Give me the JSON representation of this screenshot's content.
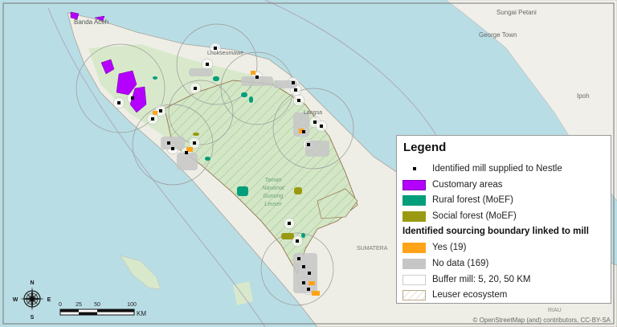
{
  "map": {
    "place_labels": {
      "banda_aceh": "Banda Aceh",
      "lhokseumawe": "Lhokseumawe",
      "langsa": "Langsa",
      "sungai_petani": "Sungai Petani",
      "george_town": "George Town",
      "ipoh": "Ipoh",
      "park_line1": "Taman",
      "park_line2": "Nasional",
      "park_line3": "Gunung",
      "park_line4": "Leuser",
      "sumatera": "SUMATERA",
      "riau": "RIAU"
    },
    "attribution": "© OpenStreetMap (and) contributors, CC-BY-SA",
    "colors": {
      "sea": "#b9dde4",
      "land": "#f1efe9",
      "leuser": "#d5e8c8",
      "customary": "#b400ff",
      "rural_forest": "#009e7a",
      "social_forest": "#9a9a12",
      "yes": "#ffa319",
      "no_data": "#c6c6c6"
    }
  },
  "legend": {
    "title": "Legend",
    "items": [
      {
        "label": "Identified mill supplied to Nestle",
        "symbol": "black-square-dot"
      },
      {
        "label": "Customary areas",
        "color": "#b400ff"
      },
      {
        "label": "Rural forest (MoEF)",
        "color": "#009e7a"
      },
      {
        "label": "Social forest (MoEF)",
        "color": "#9a9a12"
      }
    ],
    "section_header": "Identified sourcing boundary linked to mill",
    "section_items": [
      {
        "label": "Yes (19)",
        "color": "#ffa319"
      },
      {
        "label": "No data (169)",
        "color": "#c6c6c6"
      },
      {
        "label": "Buffer mill: 5, 20, 50 KM",
        "color": "#ffffff"
      },
      {
        "label": "Leuser ecosystem",
        "symbol": "hatch"
      }
    ]
  },
  "compass": {
    "n": "N",
    "s": "S",
    "e": "E",
    "w": "W"
  },
  "scale_bar": {
    "ticks": [
      "0",
      "25",
      "50",
      "100"
    ],
    "unit": "KM"
  }
}
